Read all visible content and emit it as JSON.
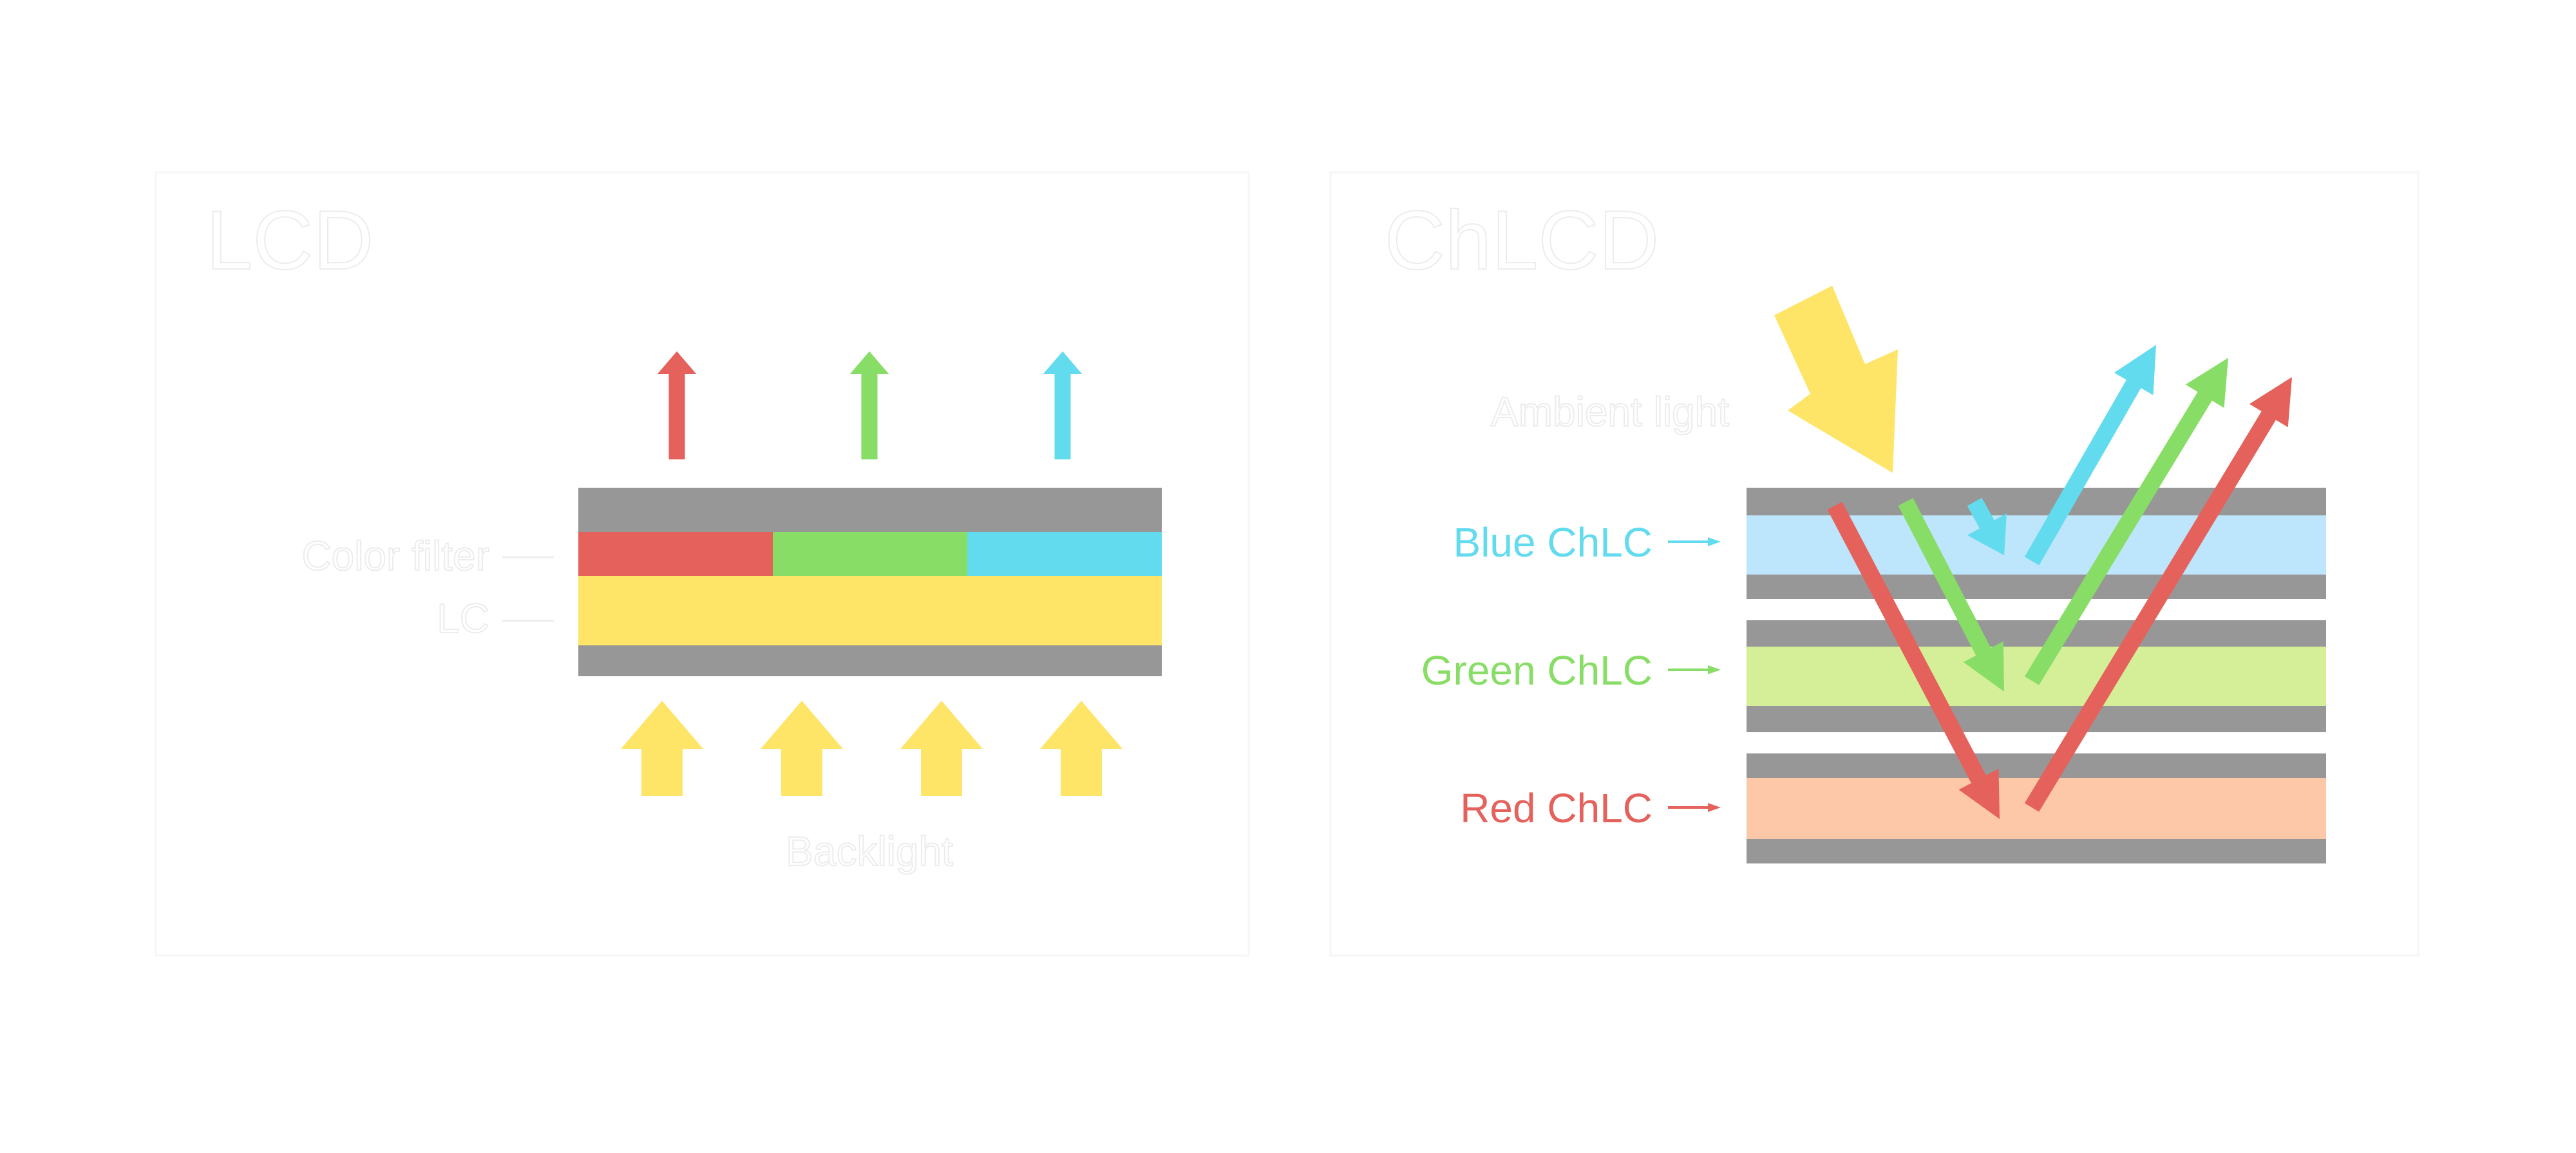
{
  "lcd": {
    "title": "LCD",
    "color_filter_label": "Color filter",
    "lc_label": "LC",
    "backlight_label": "Backlight"
  },
  "chlcd": {
    "title": "ChLCD",
    "ambient_label": "Ambient light",
    "layers": [
      {
        "label": "Blue ChLC",
        "color": "#63dbee",
        "fill": "#bde5fb"
      },
      {
        "label": "Green ChLC",
        "color": "#88dd66",
        "fill": "#d4ef98"
      },
      {
        "label": "Red ChLC",
        "color": "#e5615b",
        "fill": "#fdc8a7"
      }
    ]
  },
  "colors": {
    "gray": "#979797",
    "red": "#e5615b",
    "green": "#88dd66",
    "cyan": "#63dbee",
    "yellow": "#fee568"
  }
}
